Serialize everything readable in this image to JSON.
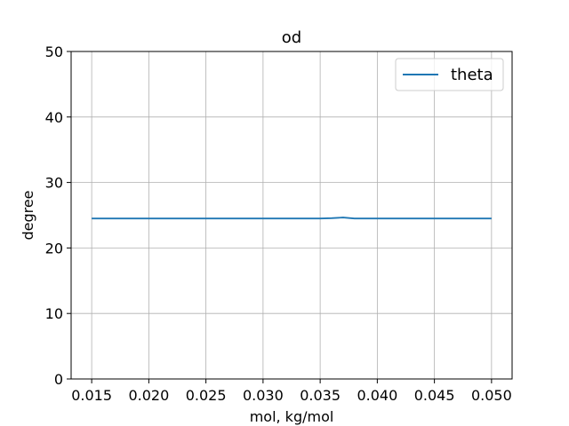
{
  "chart_data": {
    "type": "line",
    "title": "od",
    "xlabel": "mol, kg/mol",
    "ylabel": "degree",
    "xlim": [
      0.0132,
      0.0518
    ],
    "ylim": [
      0,
      50
    ],
    "xticks": [
      0.015,
      0.02,
      0.025,
      0.03,
      0.035,
      0.04,
      0.045,
      0.05
    ],
    "xtick_labels": [
      "0.015",
      "0.020",
      "0.025",
      "0.030",
      "0.035",
      "0.040",
      "0.045",
      "0.050"
    ],
    "yticks": [
      0,
      10,
      20,
      30,
      40,
      50
    ],
    "ytick_labels": [
      "0",
      "10",
      "20",
      "30",
      "40",
      "50"
    ],
    "grid": true,
    "legend_position": "top-right",
    "series": [
      {
        "name": "theta",
        "color": "#1f77b4",
        "x": [
          0.015,
          0.02,
          0.025,
          0.03,
          0.035,
          0.036,
          0.037,
          0.038,
          0.04,
          0.045,
          0.05
        ],
        "y": [
          24.5,
          24.5,
          24.5,
          24.5,
          24.5,
          24.55,
          24.65,
          24.5,
          24.5,
          24.5,
          24.5
        ]
      }
    ]
  }
}
